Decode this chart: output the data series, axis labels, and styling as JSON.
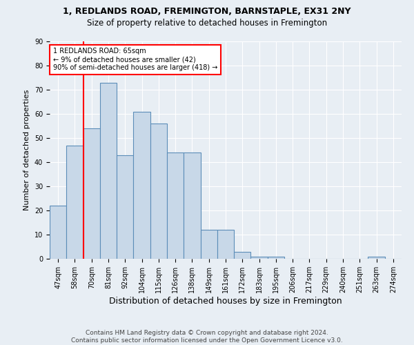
{
  "title1": "1, REDLANDS ROAD, FREMINGTON, BARNSTAPLE, EX31 2NY",
  "title2": "Size of property relative to detached houses in Fremington",
  "xlabel": "Distribution of detached houses by size in Fremington",
  "ylabel": "Number of detached properties",
  "footer1": "Contains HM Land Registry data © Crown copyright and database right 2024.",
  "footer2": "Contains public sector information licensed under the Open Government Licence v3.0.",
  "annotation_line1": "1 REDLANDS ROAD: 65sqm",
  "annotation_line2": "← 9% of detached houses are smaller (42)",
  "annotation_line3": "90% of semi-detached houses are larger (418) →",
  "bar_labels": [
    "47sqm",
    "58sqm",
    "70sqm",
    "81sqm",
    "92sqm",
    "104sqm",
    "115sqm",
    "126sqm",
    "138sqm",
    "149sqm",
    "161sqm",
    "172sqm",
    "183sqm",
    "195sqm",
    "206sqm",
    "217sqm",
    "229sqm",
    "240sqm",
    "251sqm",
    "263sqm",
    "274sqm"
  ],
  "bar_values": [
    22,
    47,
    54,
    73,
    43,
    61,
    56,
    44,
    44,
    12,
    12,
    3,
    1,
    1,
    0,
    0,
    0,
    0,
    0,
    1,
    0
  ],
  "bar_color": "#c8d8e8",
  "bar_edge_color": "#5b8db8",
  "red_line_x": 1.5,
  "ylim": [
    0,
    90
  ],
  "yticks": [
    0,
    10,
    20,
    30,
    40,
    50,
    60,
    70,
    80,
    90
  ],
  "annotation_box_color": "white",
  "annotation_box_edge_color": "red",
  "red_line_color": "red",
  "background_color": "#e8eef4",
  "plot_bg_color": "#e8eef4",
  "title_fontsize": 9,
  "subtitle_fontsize": 8.5,
  "ylabel_fontsize": 8,
  "xlabel_fontsize": 9,
  "tick_fontsize": 7,
  "annotation_fontsize": 7,
  "footer_fontsize": 6.5
}
